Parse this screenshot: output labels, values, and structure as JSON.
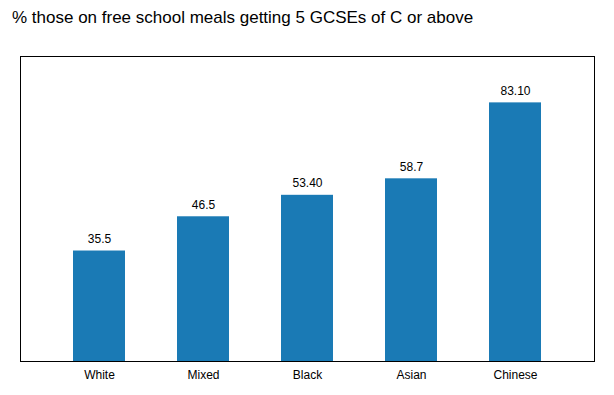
{
  "chart_data": {
    "type": "bar",
    "title": "% those on free school meals getting 5 GCSEs of C or above",
    "categories": [
      "White",
      "Mixed",
      "Black",
      "Asian",
      "Chinese"
    ],
    "values": [
      35.5,
      46.5,
      53.4,
      58.7,
      83.1
    ],
    "value_labels": [
      "35.5",
      "46.5",
      "53.40",
      "58.7",
      "83.10"
    ],
    "color": "#1a7ab5",
    "ylim": [
      0,
      98
    ],
    "data_labels": true,
    "tick_labels": "x"
  }
}
